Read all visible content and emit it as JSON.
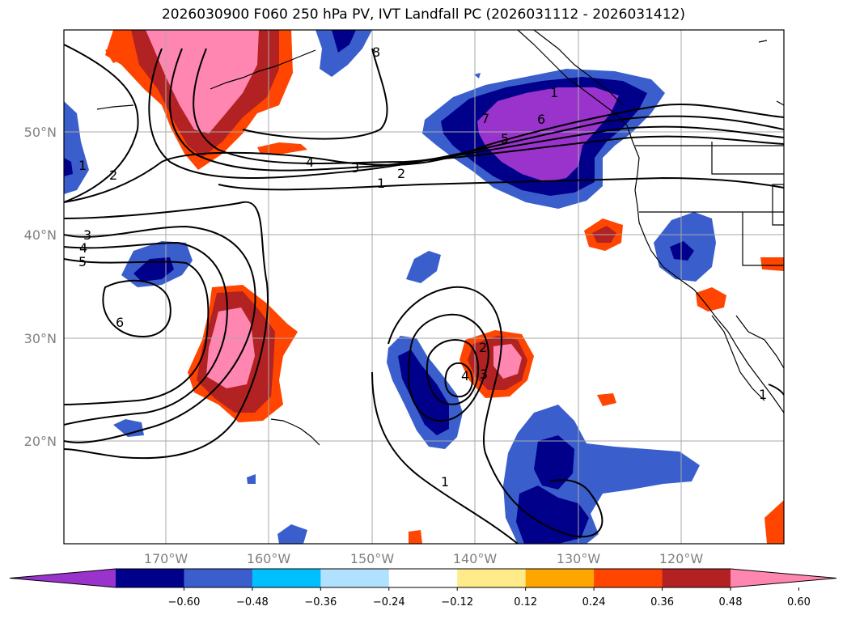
{
  "title": "2026030900 F060 250 hPa PV, IVT Landfall PC (2026031112 - 2026031412)",
  "lat_labels": [
    "50°N",
    "40°N",
    "30°N",
    "20°N"
  ],
  "lon_labels": [
    "170°W",
    "160°W",
    "150°W",
    "140°W",
    "130°W",
    "120°W"
  ],
  "colorbar": {
    "colors": [
      "#9933cc",
      "#00008b",
      "#3a5fcd",
      "#00bfff",
      "#b0e2ff",
      "#ffffff",
      "#ffeb8a",
      "#ffa500",
      "#ff4500",
      "#b22222",
      "#ff86b0"
    ],
    "tick_labels": [
      "−0.60",
      "−0.48",
      "−0.36",
      "−0.24",
      "−0.12",
      "0.12",
      "0.24",
      "0.36",
      "0.48",
      "0.60"
    ]
  },
  "contour_labels": [
    "8",
    "1",
    "2",
    "4",
    "3",
    "2",
    "1",
    "7",
    "6",
    "5",
    "3",
    "4",
    "5",
    "6",
    "1",
    "2",
    "3",
    "4",
    "1",
    "1"
  ]
}
